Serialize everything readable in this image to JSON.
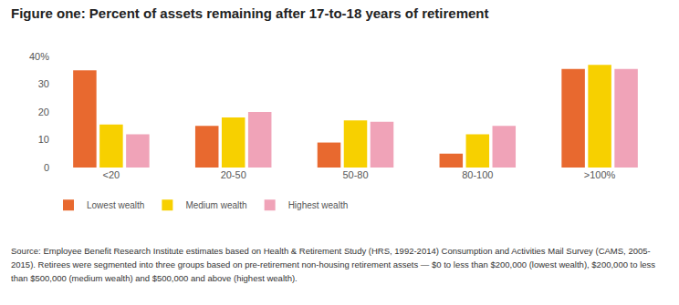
{
  "chart_data": {
    "type": "bar",
    "title": "Figure one: Percent of assets remaining after 17-to-18 years of retirement",
    "categories": [
      "<20",
      "20-50",
      "50-80",
      "80-100",
      ">100%"
    ],
    "series": [
      {
        "name": "Lowest wealth",
        "color": "#e8692f",
        "values": [
          35,
          15,
          9,
          5,
          35.5
        ]
      },
      {
        "name": "Medium wealth",
        "color": "#f7d000",
        "values": [
          15.5,
          18,
          17,
          12,
          37
        ]
      },
      {
        "name": "Highest wealth",
        "color": "#f0a3b8",
        "values": [
          12,
          20,
          16.5,
          15,
          35.5
        ]
      }
    ],
    "ylim": [
      0,
      40
    ],
    "yticks": [
      0,
      10,
      20,
      30,
      {
        "value": 40,
        "label": "40%"
      }
    ],
    "grid": false,
    "legend": "bottom left",
    "annotations": [
      "Source: Employee Benefit Research Institute estimates based on Health & Retirement Study (HRS, 1992-2014) Consumption and Activities Mail Survey (CAMS, 2005-2015). Retirees were segmented into three groups based on pre-retirement non-housing retirement assets — $0 to less than $200,000 (lowest wealth), $200,000 to less than $500,000 (medium wealth) and $500,000 and above (highest wealth)."
    ]
  }
}
